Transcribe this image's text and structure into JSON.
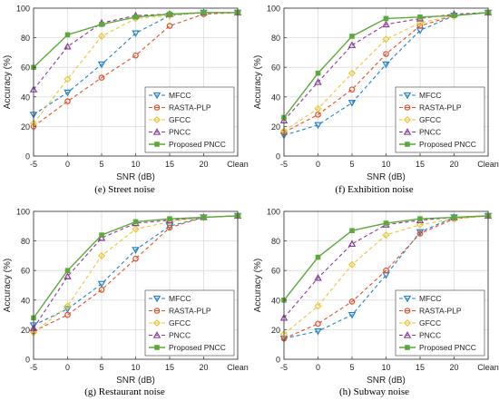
{
  "figure": {
    "captions": [
      "(e) Street noise",
      "(f) Exhibition noise",
      "(g) Restaurant noise",
      "(h) Subway noise"
    ]
  },
  "style": {
    "axis_color": "#404040",
    "grid_color": "#dcdcdc",
    "series_colors": [
      "#1f82c8",
      "#e0502a",
      "#edc531",
      "#8b3a9e",
      "#5aaa3a"
    ],
    "series_dash": [
      "dash",
      "dash",
      "dash",
      "dash",
      "solid"
    ],
    "series_markers": [
      "triangle-down",
      "circle",
      "diamond",
      "triangle-up",
      "square"
    ]
  },
  "chart_data": [
    {
      "type": "line",
      "categories": [
        "-5",
        "0",
        "5",
        "10",
        "15",
        "20",
        "Clean"
      ],
      "xlabel": "SNR (dB)",
      "ylabel": "Accuracy (%)",
      "ylim": [
        0,
        100
      ],
      "yticks": [
        0,
        20,
        40,
        60,
        80,
        100
      ],
      "grid": true,
      "legend_position": "bottom-right",
      "series": [
        {
          "name": "MFCC",
          "values": [
            28,
            43,
            62,
            83,
            95,
            97,
            97
          ]
        },
        {
          "name": "RASTA-PLP",
          "values": [
            20,
            37,
            53,
            68,
            88,
            96,
            97
          ]
        },
        {
          "name": "GFCC",
          "values": [
            22,
            52,
            81,
            93,
            95,
            97,
            97
          ]
        },
        {
          "name": "PNCC",
          "values": [
            45,
            74,
            90,
            95,
            96,
            97,
            97
          ]
        },
        {
          "name": "Proposed PNCC",
          "values": [
            60,
            82,
            89,
            94,
            96,
            97,
            97
          ]
        }
      ]
    },
    {
      "type": "line",
      "categories": [
        "-5",
        "0",
        "5",
        "10",
        "15",
        "20",
        "Clean"
      ],
      "xlabel": "SNR (dB)",
      "ylabel": "Accuracy (%)",
      "ylim": [
        0,
        100
      ],
      "yticks": [
        0,
        20,
        40,
        60,
        80,
        100
      ],
      "grid": true,
      "legend_position": "bottom-right",
      "series": [
        {
          "name": "MFCC",
          "values": [
            14,
            21,
            36,
            62,
            85,
            95,
            97
          ]
        },
        {
          "name": "RASTA-PLP",
          "values": [
            16,
            28,
            45,
            69,
            88,
            95,
            97
          ]
        },
        {
          "name": "GFCC",
          "values": [
            17,
            32,
            56,
            79,
            90,
            95,
            97
          ]
        },
        {
          "name": "PNCC",
          "values": [
            24,
            50,
            75,
            89,
            93,
            96,
            97
          ]
        },
        {
          "name": "Proposed PNCC",
          "values": [
            26,
            56,
            81,
            93,
            94,
            95,
            97
          ]
        }
      ]
    },
    {
      "type": "line",
      "categories": [
        "-5",
        "0",
        "5",
        "10",
        "15",
        "20",
        "Clean"
      ],
      "xlabel": "SNR (dB)",
      "ylabel": "Accuracy (%)",
      "ylim": [
        0,
        100
      ],
      "yticks": [
        0,
        20,
        40,
        60,
        80,
        100
      ],
      "grid": true,
      "legend_position": "bottom-right",
      "series": [
        {
          "name": "MFCC",
          "values": [
            23,
            34,
            51,
            74,
            90,
            96,
            97
          ]
        },
        {
          "name": "RASTA-PLP",
          "values": [
            19,
            30,
            47,
            68,
            89,
            96,
            97
          ]
        },
        {
          "name": "GFCC",
          "values": [
            18,
            36,
            70,
            88,
            93,
            96,
            97
          ]
        },
        {
          "name": "PNCC",
          "values": [
            21,
            56,
            82,
            92,
            94,
            96,
            97
          ]
        },
        {
          "name": "Proposed PNCC",
          "values": [
            28,
            60,
            84,
            93,
            95,
            96,
            97
          ]
        }
      ]
    },
    {
      "type": "line",
      "categories": [
        "-5",
        "0",
        "5",
        "10",
        "15",
        "20",
        "Clean"
      ],
      "xlabel": "SNR (dB)",
      "ylabel": "Accuracy (%)",
      "ylim": [
        0,
        100
      ],
      "yticks": [
        0,
        20,
        40,
        60,
        80,
        100
      ],
      "grid": true,
      "legend_position": "bottom-right",
      "series": [
        {
          "name": "MFCC",
          "values": [
            14,
            19,
            30,
            57,
            86,
            96,
            97
          ]
        },
        {
          "name": "RASTA-PLP",
          "values": [
            14,
            24,
            39,
            60,
            85,
            95,
            97
          ]
        },
        {
          "name": "GFCC",
          "values": [
            17,
            36,
            64,
            84,
            91,
            95,
            97
          ]
        },
        {
          "name": "PNCC",
          "values": [
            28,
            55,
            78,
            91,
            94,
            96,
            97
          ]
        },
        {
          "name": "Proposed PNCC",
          "values": [
            40,
            69,
            87,
            92,
            95,
            96,
            97
          ]
        }
      ]
    }
  ]
}
